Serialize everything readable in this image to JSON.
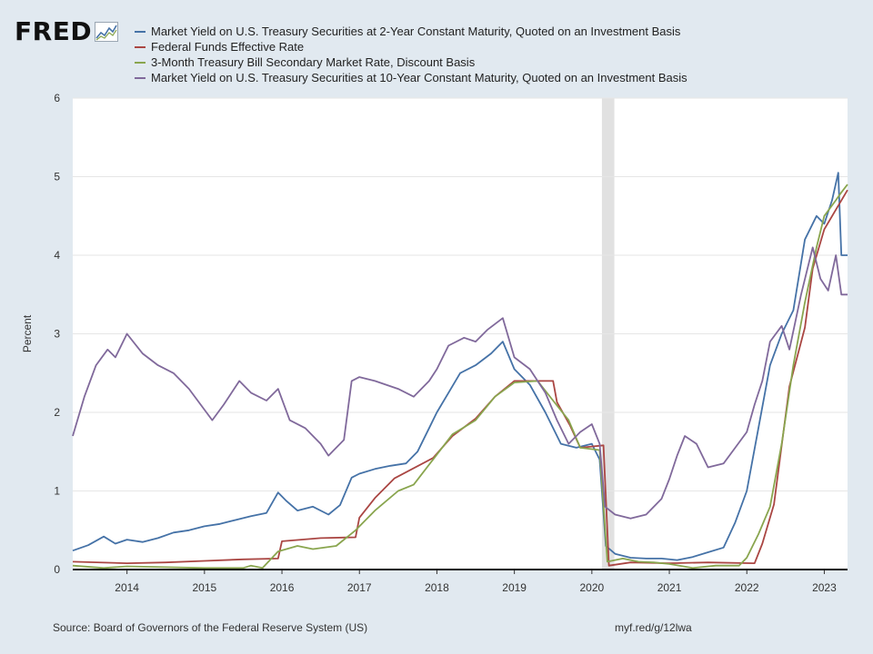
{
  "logo": {
    "text": "FRED"
  },
  "source": "Source: Board of Governors of the Federal Reserve System (US)",
  "short_link": "myf.red/g/12lwa",
  "chart_data": {
    "type": "line",
    "ylabel": "Percent",
    "ylim": [
      0,
      6
    ],
    "yticks": [
      0,
      1,
      2,
      3,
      4,
      5,
      6
    ],
    "xlim": [
      2013.3,
      2023.3
    ],
    "xticks": [
      "2014",
      "2015",
      "2016",
      "2017",
      "2018",
      "2019",
      "2020",
      "2021",
      "2022",
      "2023"
    ],
    "grid": true,
    "legend": "top",
    "recession_shading": [
      [
        2020.13,
        2020.29
      ]
    ],
    "series": [
      {
        "name": "Market Yield on U.S. Treasury Securities at 2-Year Constant Maturity, Quoted on an Investment Basis",
        "color": "#4572a7",
        "points": [
          [
            2013.3,
            0.24
          ],
          [
            2013.5,
            0.31
          ],
          [
            2013.7,
            0.42
          ],
          [
            2013.85,
            0.33
          ],
          [
            2014.0,
            0.38
          ],
          [
            2014.2,
            0.35
          ],
          [
            2014.4,
            0.4
          ],
          [
            2014.6,
            0.47
          ],
          [
            2014.8,
            0.5
          ],
          [
            2015.0,
            0.55
          ],
          [
            2015.2,
            0.58
          ],
          [
            2015.4,
            0.63
          ],
          [
            2015.6,
            0.68
          ],
          [
            2015.8,
            0.72
          ],
          [
            2015.95,
            0.98
          ],
          [
            2016.05,
            0.88
          ],
          [
            2016.2,
            0.75
          ],
          [
            2016.4,
            0.8
          ],
          [
            2016.6,
            0.7
          ],
          [
            2016.75,
            0.82
          ],
          [
            2016.9,
            1.17
          ],
          [
            2017.0,
            1.22
          ],
          [
            2017.2,
            1.28
          ],
          [
            2017.4,
            1.32
          ],
          [
            2017.6,
            1.35
          ],
          [
            2017.75,
            1.5
          ],
          [
            2017.9,
            1.8
          ],
          [
            2018.0,
            2.0
          ],
          [
            2018.15,
            2.25
          ],
          [
            2018.3,
            2.5
          ],
          [
            2018.5,
            2.6
          ],
          [
            2018.7,
            2.75
          ],
          [
            2018.85,
            2.9
          ],
          [
            2019.0,
            2.55
          ],
          [
            2019.2,
            2.35
          ],
          [
            2019.4,
            2.0
          ],
          [
            2019.6,
            1.6
          ],
          [
            2019.8,
            1.55
          ],
          [
            2020.0,
            1.6
          ],
          [
            2020.1,
            1.4
          ],
          [
            2020.18,
            0.3
          ],
          [
            2020.3,
            0.2
          ],
          [
            2020.5,
            0.15
          ],
          [
            2020.7,
            0.14
          ],
          [
            2020.9,
            0.14
          ],
          [
            2021.1,
            0.12
          ],
          [
            2021.3,
            0.16
          ],
          [
            2021.5,
            0.22
          ],
          [
            2021.7,
            0.28
          ],
          [
            2021.85,
            0.6
          ],
          [
            2022.0,
            1.0
          ],
          [
            2022.15,
            1.8
          ],
          [
            2022.3,
            2.6
          ],
          [
            2022.45,
            3.0
          ],
          [
            2022.6,
            3.3
          ],
          [
            2022.75,
            4.2
          ],
          [
            2022.9,
            4.5
          ],
          [
            2023.0,
            4.4
          ],
          [
            2023.1,
            4.7
          ],
          [
            2023.18,
            5.05
          ],
          [
            2023.22,
            4.0
          ],
          [
            2023.3,
            4.0
          ]
        ]
      },
      {
        "name": "Federal Funds Effective Rate",
        "color": "#aa4643",
        "points": [
          [
            2013.3,
            0.1
          ],
          [
            2014.0,
            0.08
          ],
          [
            2014.5,
            0.09
          ],
          [
            2015.0,
            0.11
          ],
          [
            2015.5,
            0.13
          ],
          [
            2015.95,
            0.14
          ],
          [
            2016.0,
            0.36
          ],
          [
            2016.5,
            0.4
          ],
          [
            2016.95,
            0.41
          ],
          [
            2017.0,
            0.66
          ],
          [
            2017.2,
            0.91
          ],
          [
            2017.45,
            1.16
          ],
          [
            2017.95,
            1.42
          ],
          [
            2018.2,
            1.7
          ],
          [
            2018.5,
            1.92
          ],
          [
            2018.75,
            2.2
          ],
          [
            2019.0,
            2.4
          ],
          [
            2019.5,
            2.4
          ],
          [
            2019.55,
            2.13
          ],
          [
            2019.72,
            1.83
          ],
          [
            2019.85,
            1.55
          ],
          [
            2020.15,
            1.58
          ],
          [
            2020.22,
            0.05
          ],
          [
            2020.5,
            0.09
          ],
          [
            2021.0,
            0.08
          ],
          [
            2021.5,
            0.09
          ],
          [
            2022.1,
            0.08
          ],
          [
            2022.2,
            0.33
          ],
          [
            2022.35,
            0.83
          ],
          [
            2022.45,
            1.58
          ],
          [
            2022.55,
            2.33
          ],
          [
            2022.75,
            3.08
          ],
          [
            2022.85,
            3.83
          ],
          [
            2023.0,
            4.33
          ],
          [
            2023.15,
            4.58
          ],
          [
            2023.3,
            4.83
          ]
        ]
      },
      {
        "name": "3-Month Treasury Bill Secondary Market Rate, Discount Basis",
        "color": "#89a54e",
        "points": [
          [
            2013.3,
            0.05
          ],
          [
            2013.7,
            0.02
          ],
          [
            2014.0,
            0.04
          ],
          [
            2014.5,
            0.03
          ],
          [
            2015.0,
            0.02
          ],
          [
            2015.5,
            0.02
          ],
          [
            2015.6,
            0.05
          ],
          [
            2015.75,
            0.02
          ],
          [
            2015.95,
            0.23
          ],
          [
            2016.2,
            0.3
          ],
          [
            2016.4,
            0.26
          ],
          [
            2016.7,
            0.3
          ],
          [
            2016.95,
            0.5
          ],
          [
            2017.2,
            0.75
          ],
          [
            2017.5,
            1.0
          ],
          [
            2017.7,
            1.08
          ],
          [
            2017.95,
            1.4
          ],
          [
            2018.2,
            1.72
          ],
          [
            2018.5,
            1.9
          ],
          [
            2018.75,
            2.2
          ],
          [
            2019.0,
            2.38
          ],
          [
            2019.3,
            2.4
          ],
          [
            2019.5,
            2.15
          ],
          [
            2019.7,
            1.9
          ],
          [
            2019.85,
            1.55
          ],
          [
            2020.1,
            1.52
          ],
          [
            2020.2,
            0.1
          ],
          [
            2020.4,
            0.14
          ],
          [
            2020.6,
            0.1
          ],
          [
            2020.8,
            0.09
          ],
          [
            2021.0,
            0.07
          ],
          [
            2021.3,
            0.02
          ],
          [
            2021.6,
            0.05
          ],
          [
            2021.9,
            0.05
          ],
          [
            2022.0,
            0.15
          ],
          [
            2022.15,
            0.45
          ],
          [
            2022.3,
            0.8
          ],
          [
            2022.45,
            1.6
          ],
          [
            2022.6,
            2.6
          ],
          [
            2022.75,
            3.4
          ],
          [
            2022.9,
            4.1
          ],
          [
            2023.0,
            4.5
          ],
          [
            2023.15,
            4.7
          ],
          [
            2023.22,
            4.8
          ],
          [
            2023.3,
            4.9
          ]
        ]
      },
      {
        "name": "Market Yield on U.S. Treasury Securities at 10-Year Constant Maturity, Quoted on an Investment Basis",
        "color": "#80699b",
        "points": [
          [
            2013.3,
            1.7
          ],
          [
            2013.45,
            2.2
          ],
          [
            2013.6,
            2.6
          ],
          [
            2013.75,
            2.8
          ],
          [
            2013.85,
            2.7
          ],
          [
            2014.0,
            3.0
          ],
          [
            2014.2,
            2.75
          ],
          [
            2014.4,
            2.6
          ],
          [
            2014.6,
            2.5
          ],
          [
            2014.8,
            2.3
          ],
          [
            2014.95,
            2.1
          ],
          [
            2015.1,
            1.9
          ],
          [
            2015.25,
            2.1
          ],
          [
            2015.45,
            2.4
          ],
          [
            2015.6,
            2.25
          ],
          [
            2015.8,
            2.15
          ],
          [
            2015.95,
            2.3
          ],
          [
            2016.1,
            1.9
          ],
          [
            2016.3,
            1.8
          ],
          [
            2016.5,
            1.6
          ],
          [
            2016.6,
            1.45
          ],
          [
            2016.8,
            1.65
          ],
          [
            2016.9,
            2.4
          ],
          [
            2017.0,
            2.45
          ],
          [
            2017.2,
            2.4
          ],
          [
            2017.5,
            2.3
          ],
          [
            2017.7,
            2.2
          ],
          [
            2017.9,
            2.4
          ],
          [
            2018.0,
            2.55
          ],
          [
            2018.15,
            2.85
          ],
          [
            2018.35,
            2.95
          ],
          [
            2018.5,
            2.9
          ],
          [
            2018.65,
            3.05
          ],
          [
            2018.85,
            3.2
          ],
          [
            2019.0,
            2.7
          ],
          [
            2019.2,
            2.55
          ],
          [
            2019.4,
            2.25
          ],
          [
            2019.55,
            1.9
          ],
          [
            2019.7,
            1.6
          ],
          [
            2019.85,
            1.75
          ],
          [
            2020.0,
            1.85
          ],
          [
            2020.1,
            1.6
          ],
          [
            2020.17,
            0.8
          ],
          [
            2020.3,
            0.7
          ],
          [
            2020.5,
            0.65
          ],
          [
            2020.7,
            0.7
          ],
          [
            2020.9,
            0.9
          ],
          [
            2021.0,
            1.15
          ],
          [
            2021.1,
            1.45
          ],
          [
            2021.2,
            1.7
          ],
          [
            2021.35,
            1.6
          ],
          [
            2021.5,
            1.3
          ],
          [
            2021.7,
            1.35
          ],
          [
            2021.85,
            1.55
          ],
          [
            2022.0,
            1.75
          ],
          [
            2022.1,
            2.1
          ],
          [
            2022.2,
            2.4
          ],
          [
            2022.3,
            2.9
          ],
          [
            2022.45,
            3.1
          ],
          [
            2022.55,
            2.8
          ],
          [
            2022.7,
            3.5
          ],
          [
            2022.85,
            4.1
          ],
          [
            2022.95,
            3.7
          ],
          [
            2023.05,
            3.55
          ],
          [
            2023.15,
            4.0
          ],
          [
            2023.22,
            3.5
          ],
          [
            2023.3,
            3.5
          ]
        ]
      }
    ]
  }
}
